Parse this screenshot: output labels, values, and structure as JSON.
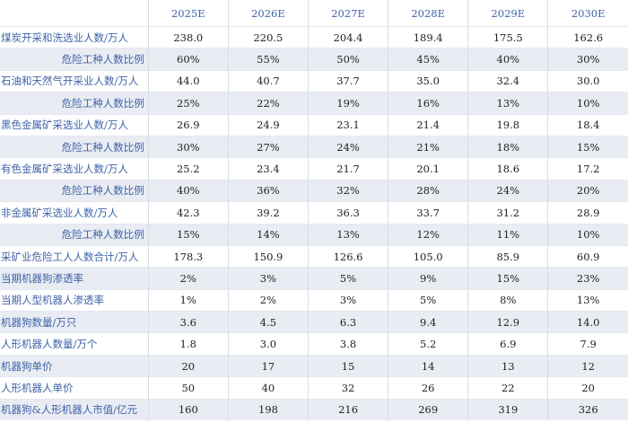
{
  "header": {
    "corner": "",
    "years": [
      "2025E",
      "2026E",
      "2027E",
      "2028E",
      "2029E",
      "2030E"
    ]
  },
  "rows": [
    {
      "label": "煤炭开采和洗选业人数/万人",
      "indent": false,
      "shade": false,
      "values": [
        "238.0",
        "220.5",
        "204.4",
        "189.4",
        "175.5",
        "162.6"
      ]
    },
    {
      "label": "危险工种人数比例",
      "indent": true,
      "shade": true,
      "values": [
        "60%",
        "55%",
        "50%",
        "45%",
        "40%",
        "30%"
      ]
    },
    {
      "label": "石油和天然气开采业人数/万人",
      "indent": false,
      "shade": false,
      "values": [
        "44.0",
        "40.7",
        "37.7",
        "35.0",
        "32.4",
        "30.0"
      ]
    },
    {
      "label": "危险工种人数比例",
      "indent": true,
      "shade": true,
      "values": [
        "25%",
        "22%",
        "19%",
        "16%",
        "13%",
        "10%"
      ]
    },
    {
      "label": "黑色金属矿采选业人数/万人",
      "indent": false,
      "shade": false,
      "values": [
        "26.9",
        "24.9",
        "23.1",
        "21.4",
        "19.8",
        "18.4"
      ]
    },
    {
      "label": "危险工种人数比例",
      "indent": true,
      "shade": true,
      "values": [
        "30%",
        "27%",
        "24%",
        "21%",
        "18%",
        "15%"
      ]
    },
    {
      "label": "有色金属矿采选业人数/万人",
      "indent": false,
      "shade": false,
      "values": [
        "25.2",
        "23.4",
        "21.7",
        "20.1",
        "18.6",
        "17.2"
      ]
    },
    {
      "label": "危险工种人数比例",
      "indent": true,
      "shade": true,
      "values": [
        "40%",
        "36%",
        "32%",
        "28%",
        "24%",
        "20%"
      ]
    },
    {
      "label": "非金属矿采选业人数/万人",
      "indent": false,
      "shade": false,
      "values": [
        "42.3",
        "39.2",
        "36.3",
        "33.7",
        "31.2",
        "28.9"
      ]
    },
    {
      "label": "危险工种人数比例",
      "indent": true,
      "shade": true,
      "values": [
        "15%",
        "14%",
        "13%",
        "12%",
        "11%",
        "10%"
      ]
    },
    {
      "label": "采矿业危险工人人数合计/万人",
      "indent": false,
      "shade": false,
      "values": [
        "178.3",
        "150.9",
        "126.6",
        "105.0",
        "85.9",
        "60.9"
      ]
    },
    {
      "label": "当期机器狗渗透率",
      "indent": false,
      "shade": true,
      "values": [
        "2%",
        "3%",
        "5%",
        "9%",
        "15%",
        "23%"
      ]
    },
    {
      "label": "当期人型机器人渗透率",
      "indent": false,
      "shade": false,
      "values": [
        "1%",
        "2%",
        "3%",
        "5%",
        "8%",
        "13%"
      ]
    },
    {
      "label": "机器狗数量/万只",
      "indent": false,
      "shade": true,
      "values": [
        "3.6",
        "4.5",
        "6.3",
        "9.4",
        "12.9",
        "14.0"
      ]
    },
    {
      "label": "人形机器人数量/万个",
      "indent": false,
      "shade": false,
      "values": [
        "1.8",
        "3.0",
        "3.8",
        "5.2",
        "6.9",
        "7.9"
      ]
    },
    {
      "label": "机器狗单价",
      "indent": false,
      "shade": true,
      "values": [
        "20",
        "17",
        "15",
        "14",
        "13",
        "12"
      ]
    },
    {
      "label": "人形机器人单价",
      "indent": false,
      "shade": false,
      "values": [
        "50",
        "40",
        "32",
        "26",
        "22",
        "20"
      ]
    },
    {
      "label": "机器狗&人形机器人市值/亿元",
      "indent": false,
      "shade": true,
      "values": [
        "160",
        "198",
        "216",
        "269",
        "319",
        "326"
      ]
    }
  ]
}
